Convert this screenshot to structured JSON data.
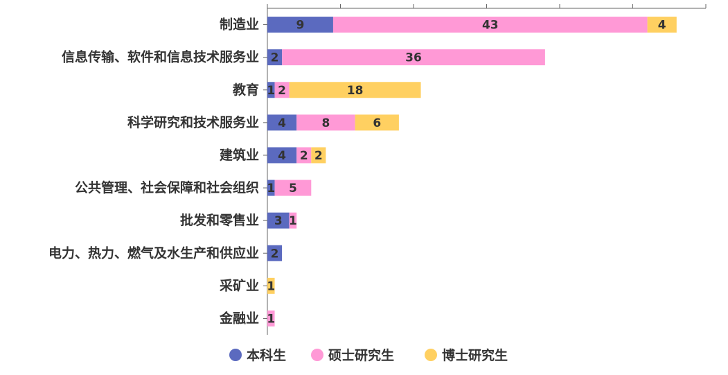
{
  "chart_data": {
    "type": "bar",
    "orientation": "horizontal",
    "stacked": true,
    "categories": [
      "制造业",
      "信息传输、软件和信息技术服务业",
      "教育",
      "科学研究和技术服务业",
      "建筑业",
      "公共管理、社会保障和社会组织",
      "批发和零售业",
      "电力、热力、燃气及水生产和供应业",
      "采矿业",
      "金融业"
    ],
    "series": [
      {
        "name": "本科生",
        "color": "#5b6abf",
        "values": [
          9,
          2,
          1,
          4,
          4,
          1,
          3,
          2,
          0,
          0
        ]
      },
      {
        "name": "硕士研究生",
        "color": "#ff99d6",
        "values": [
          43,
          36,
          2,
          8,
          2,
          5,
          1,
          0,
          0,
          1
        ]
      },
      {
        "name": "博士研究生",
        "color": "#ffd061",
        "values": [
          4,
          0,
          18,
          6,
          2,
          0,
          0,
          0,
          1,
          0
        ]
      }
    ],
    "xlim": [
      0,
      60
    ],
    "xtick_step": 10,
    "show_tick_labels": false,
    "legend_position": "bottom"
  }
}
